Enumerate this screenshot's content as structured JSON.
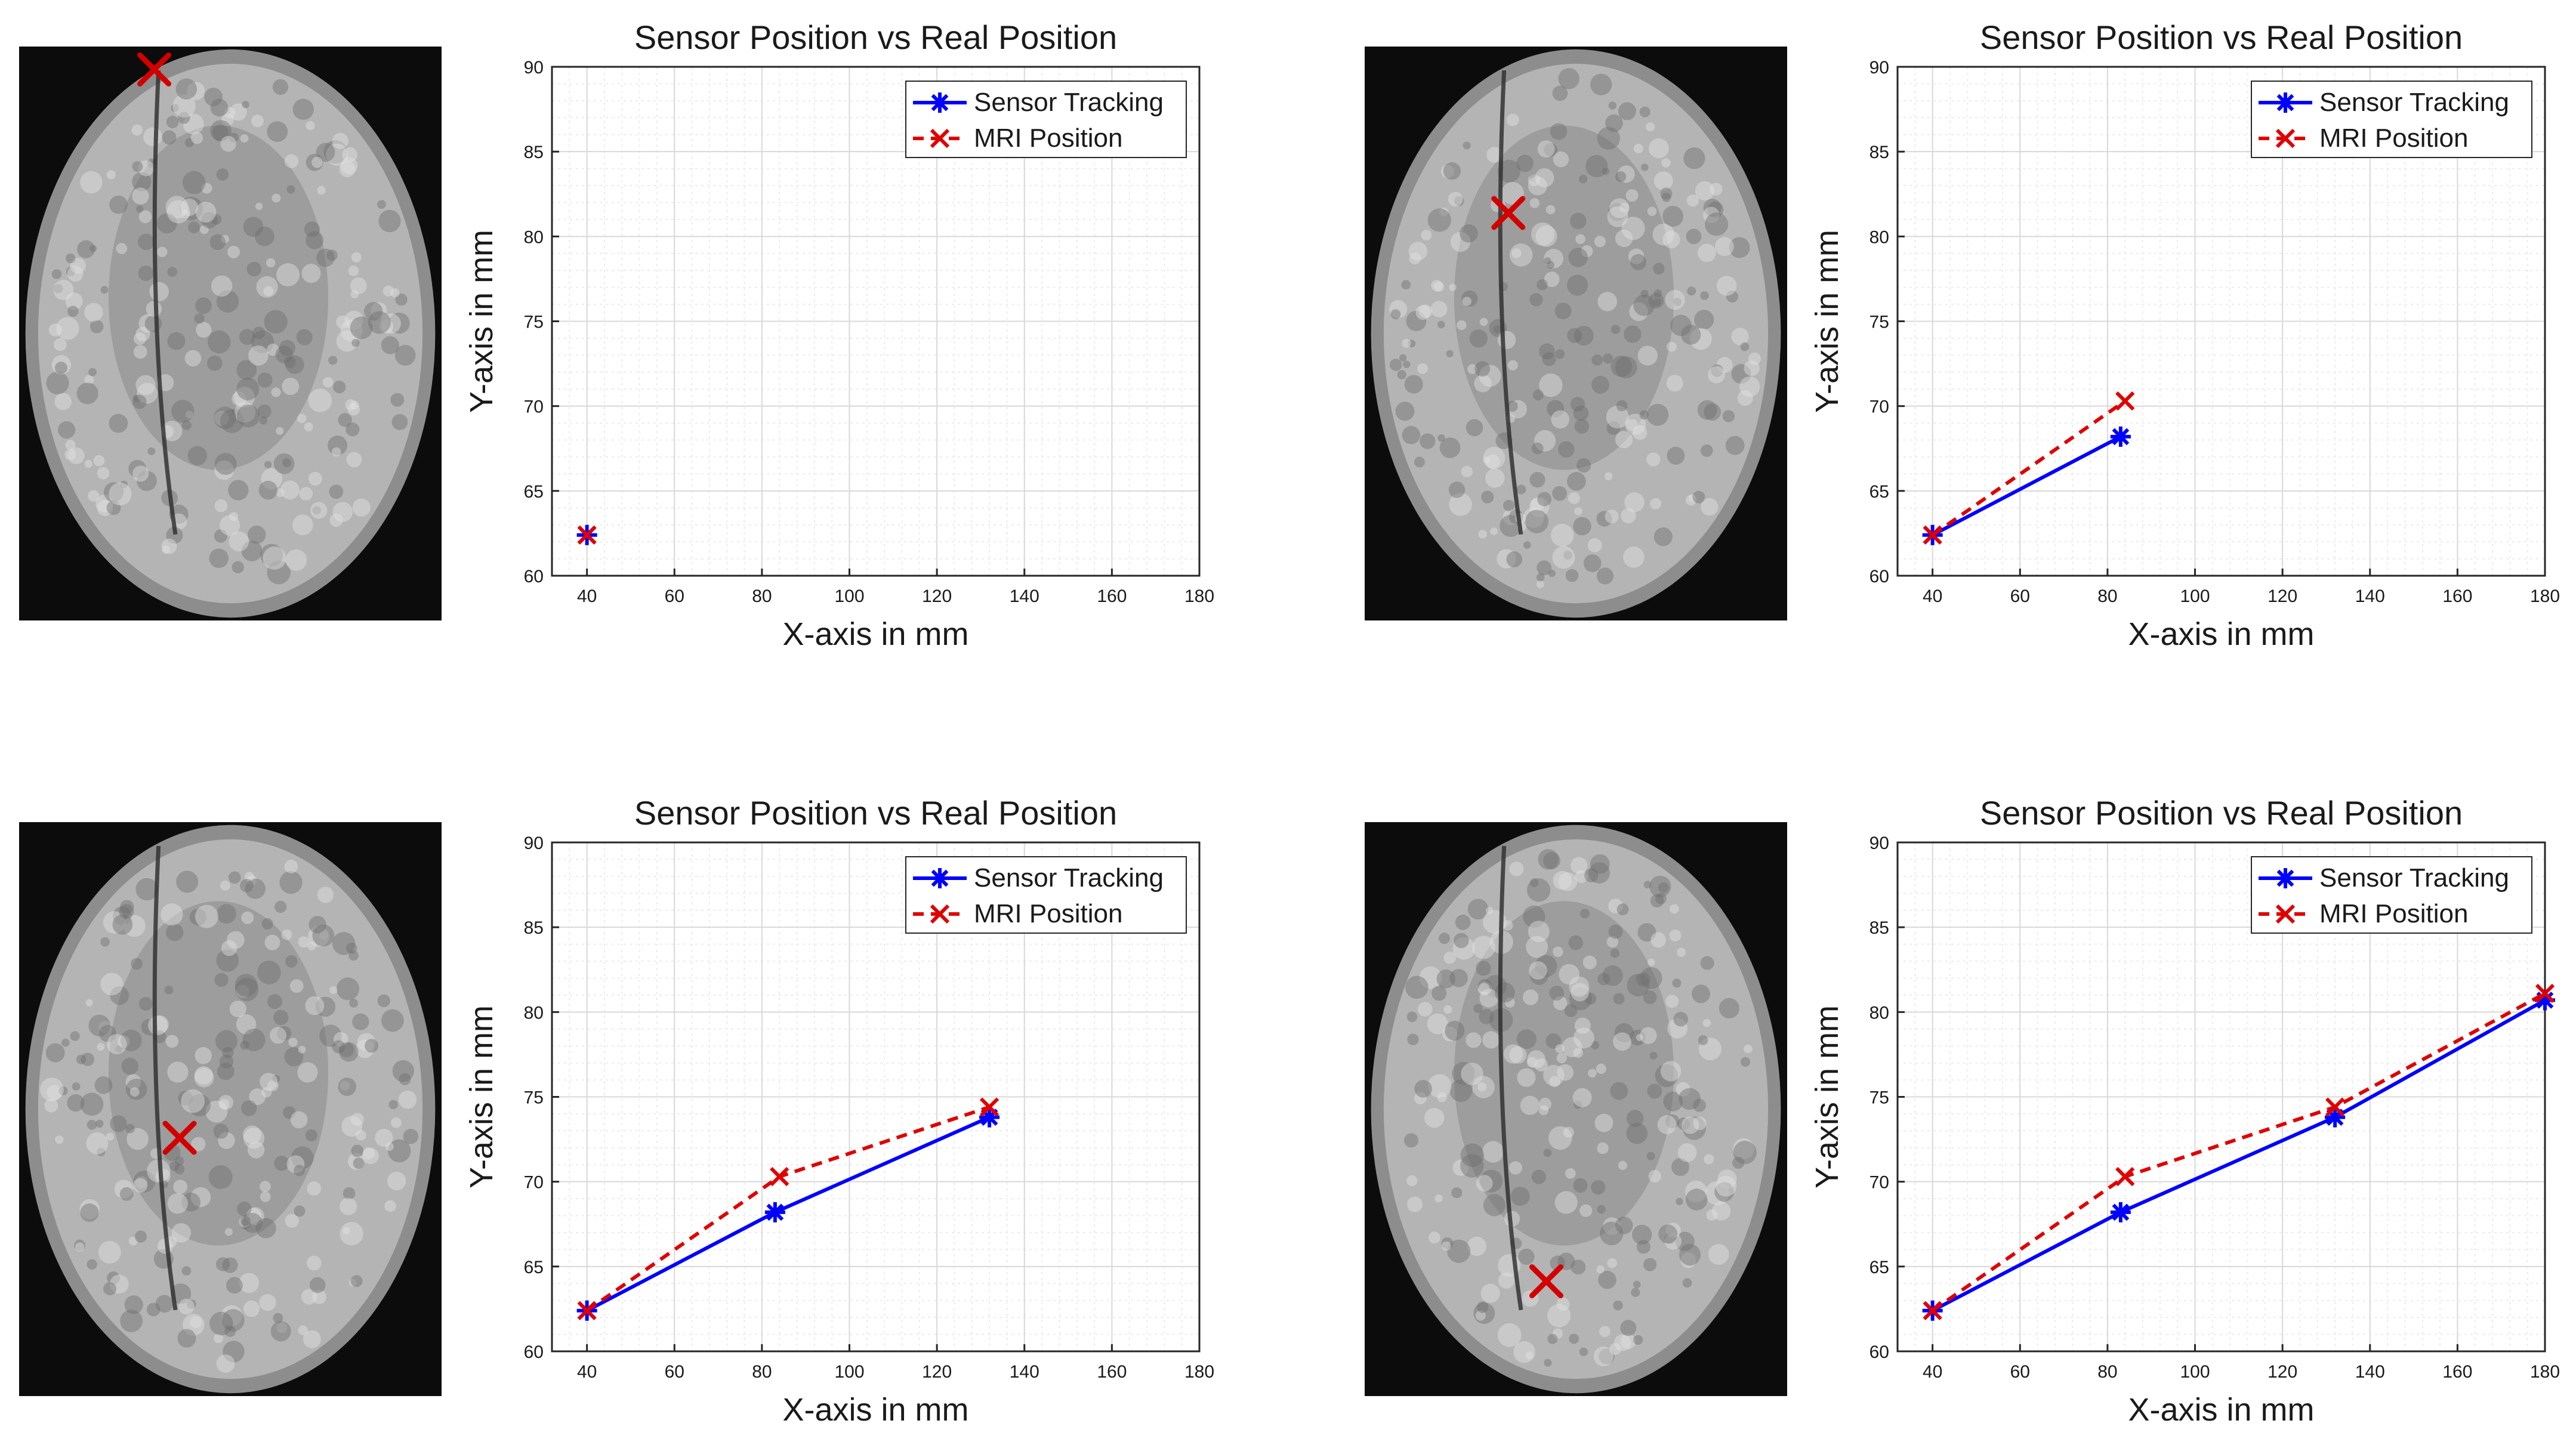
{
  "chart_data": [
    {
      "type": "line",
      "title": "Sensor Position vs Real Position",
      "xlabel": "X-axis in mm",
      "ylabel": "Y-axis in mm",
      "xlim": [
        32,
        180
      ],
      "ylim": [
        60,
        90
      ],
      "xticks": [
        40,
        60,
        80,
        100,
        120,
        140,
        160,
        180
      ],
      "yticks": [
        60,
        65,
        70,
        75,
        80,
        85,
        90
      ],
      "grid": "on",
      "legend": "top-right",
      "series": [
        {
          "name": "Sensor Tracking",
          "color": "#0000ff",
          "marker": "asterisk",
          "line": "solid",
          "x": [
            40
          ],
          "y": [
            62.4
          ]
        },
        {
          "name": "MRI Position",
          "color": "#e00000",
          "marker": "x",
          "line": "dashed",
          "x": [
            40
          ],
          "y": [
            62.4
          ]
        }
      ],
      "mri_marker": {
        "color": "#e00000",
        "icon": "x-marker-icon"
      }
    },
    {
      "type": "line",
      "title": "Sensor Position vs Real Position",
      "xlabel": "X-axis in mm",
      "ylabel": "Y-axis in mm",
      "xlim": [
        32,
        180
      ],
      "ylim": [
        60,
        90
      ],
      "xticks": [
        40,
        60,
        80,
        100,
        120,
        140,
        160,
        180
      ],
      "yticks": [
        60,
        65,
        70,
        75,
        80,
        85,
        90
      ],
      "grid": "on",
      "legend": "top-right",
      "series": [
        {
          "name": "Sensor Tracking",
          "color": "#0000ff",
          "marker": "asterisk",
          "line": "solid",
          "x": [
            40,
            83
          ],
          "y": [
            62.4,
            68.2
          ]
        },
        {
          "name": "MRI Position",
          "color": "#e00000",
          "marker": "x",
          "line": "dashed",
          "x": [
            40,
            84
          ],
          "y": [
            62.4,
            70.3
          ]
        }
      ],
      "mri_marker": {
        "color": "#e00000",
        "icon": "x-marker-icon"
      }
    },
    {
      "type": "line",
      "title": "Sensor Position vs Real Position",
      "xlabel": "X-axis in mm",
      "ylabel": "Y-axis in mm",
      "xlim": [
        32,
        180
      ],
      "ylim": [
        60,
        90
      ],
      "xticks": [
        40,
        60,
        80,
        100,
        120,
        140,
        160,
        180
      ],
      "yticks": [
        60,
        65,
        70,
        75,
        80,
        85,
        90
      ],
      "grid": "on",
      "legend": "top-right",
      "series": [
        {
          "name": "Sensor Tracking",
          "color": "#0000ff",
          "marker": "asterisk",
          "line": "solid",
          "x": [
            40,
            83,
            132
          ],
          "y": [
            62.4,
            68.2,
            73.8
          ]
        },
        {
          "name": "MRI Position",
          "color": "#e00000",
          "marker": "x",
          "line": "dashed",
          "x": [
            40,
            84,
            132
          ],
          "y": [
            62.4,
            70.3,
            74.4
          ]
        }
      ],
      "mri_marker": {
        "color": "#e00000",
        "icon": "x-marker-icon"
      }
    },
    {
      "type": "line",
      "title": "Sensor Position vs Real Position",
      "xlabel": "X-axis in mm",
      "ylabel": "Y-axis in mm",
      "xlim": [
        32,
        180
      ],
      "ylim": [
        60,
        90
      ],
      "xticks": [
        40,
        60,
        80,
        100,
        120,
        140,
        160,
        180
      ],
      "yticks": [
        60,
        65,
        70,
        75,
        80,
        85,
        90
      ],
      "grid": "on",
      "legend": "top-right",
      "series": [
        {
          "name": "Sensor Tracking",
          "color": "#0000ff",
          "marker": "asterisk",
          "line": "solid",
          "x": [
            40,
            83,
            132,
            180
          ],
          "y": [
            62.4,
            68.2,
            73.8,
            80.7
          ]
        },
        {
          "name": "MRI Position",
          "color": "#e00000",
          "marker": "x",
          "line": "dashed",
          "x": [
            40,
            84,
            132,
            180
          ],
          "y": [
            62.4,
            70.3,
            74.4,
            81.1
          ]
        }
      ],
      "mri_marker": {
        "color": "#e00000",
        "icon": "x-marker-icon"
      }
    }
  ]
}
